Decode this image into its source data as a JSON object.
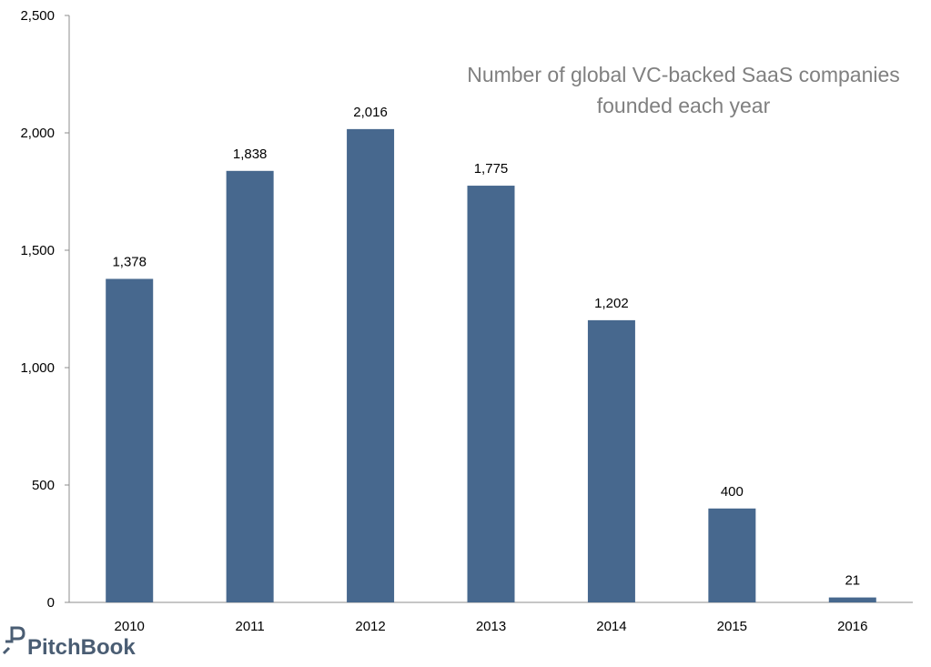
{
  "chart_data": {
    "type": "bar",
    "title_lines": [
      "Number of global VC-backed SaaS companies",
      "founded each year"
    ],
    "categories": [
      "2010",
      "2011",
      "2012",
      "2013",
      "2014",
      "2015",
      "2016"
    ],
    "values": [
      1378,
      1838,
      2016,
      1775,
      1202,
      400,
      21
    ],
    "data_labels": [
      "1,378",
      "1,838",
      "2,016",
      "1,775",
      "1,202",
      "400",
      "21"
    ],
    "ylim": [
      0,
      2500
    ],
    "y_ticks": [
      0,
      500,
      1000,
      1500,
      2000,
      2500
    ],
    "y_tick_labels": [
      "0",
      "500",
      "1,000",
      "1,500",
      "2,000",
      "2,500"
    ],
    "xlabel": "",
    "ylabel": "",
    "grid": false,
    "legend": "none",
    "bar_color": "#47688e"
  },
  "branding": {
    "logo_text": "PitchBook",
    "logo_color": "#4a5d73"
  }
}
